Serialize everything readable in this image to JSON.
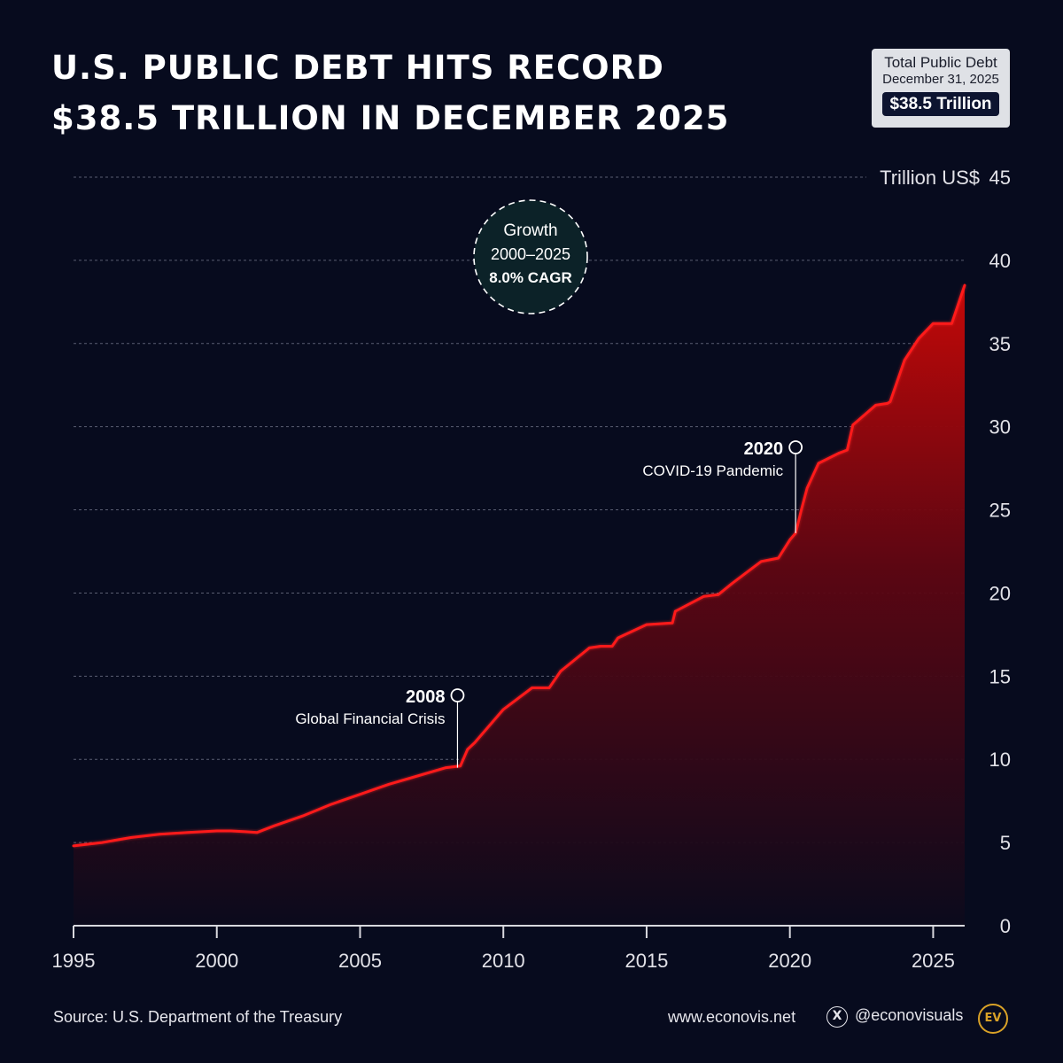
{
  "title": {
    "line1": "U.S. PUBLIC DEBT HITS RECORD",
    "line2": "$38.5 TRILLION IN DECEMBER 2025"
  },
  "info_box": {
    "label": "Total Public Debt",
    "date": "December 31, 2025",
    "value": "$38.5 Trillion"
  },
  "growth_badge": {
    "line1": "Growth",
    "line2": "2000–2025",
    "line3": "8.0% CAGR"
  },
  "chart_data": {
    "type": "area",
    "ylabel": "Trillion US$",
    "xlim": [
      1995,
      2026.1
    ],
    "ylim": [
      0,
      45
    ],
    "x_ticks": [
      1995,
      2000,
      2005,
      2010,
      2015,
      2020,
      2025
    ],
    "y_ticks": [
      0,
      5,
      10,
      15,
      20,
      25,
      30,
      35,
      40,
      45
    ],
    "grid": true,
    "series": [
      {
        "name": "Total Public Debt",
        "color": "#ff1a1a",
        "x": [
          1995.0,
          1996.0,
          1997.0,
          1998.0,
          1999.0,
          2000.0,
          2000.5,
          2001.0,
          2001.4,
          2002.0,
          2003.0,
          2004.0,
          2005.0,
          2006.0,
          2007.0,
          2008.0,
          2008.5,
          2008.75,
          2009.0,
          2010.0,
          2011.0,
          2011.6,
          2012.0,
          2013.0,
          2013.4,
          2013.8,
          2014.0,
          2015.0,
          2015.9,
          2016.0,
          2017.0,
          2017.5,
          2018.0,
          2019.0,
          2019.6,
          2020.0,
          2020.2,
          2020.4,
          2020.6,
          2021.0,
          2021.7,
          2022.0,
          2022.2,
          2023.0,
          2023.4,
          2023.5,
          2024.0,
          2024.5,
          2025.0,
          2025.5,
          2025.65,
          2026.0,
          2026.1
        ],
        "y": [
          4.8,
          5.0,
          5.3,
          5.5,
          5.6,
          5.7,
          5.7,
          5.65,
          5.6,
          6.0,
          6.6,
          7.3,
          7.9,
          8.5,
          9.0,
          9.5,
          9.6,
          10.6,
          11.0,
          13.0,
          14.3,
          14.3,
          15.3,
          16.7,
          16.8,
          16.8,
          17.3,
          18.1,
          18.2,
          18.9,
          19.8,
          19.9,
          20.6,
          21.9,
          22.1,
          23.2,
          23.6,
          25.0,
          26.3,
          27.8,
          28.4,
          28.6,
          30.1,
          31.3,
          31.4,
          31.5,
          34.0,
          35.3,
          36.2,
          36.2,
          36.2,
          38.0,
          38.5
        ]
      }
    ],
    "annotations": [
      {
        "year": "2008",
        "label": "Global Financial Crisis",
        "x": 2008.4,
        "y": 9.5
      },
      {
        "year": "2020",
        "label": "COVID-19 Pandemic",
        "x": 2020.2,
        "y": 23.6
      }
    ]
  },
  "footer": {
    "source": "Source: U.S. Department of the Treasury",
    "website": "www.econovis.net",
    "x_icon_glyph": "X",
    "handle": "@econovisuals",
    "logo_text": "EV"
  }
}
